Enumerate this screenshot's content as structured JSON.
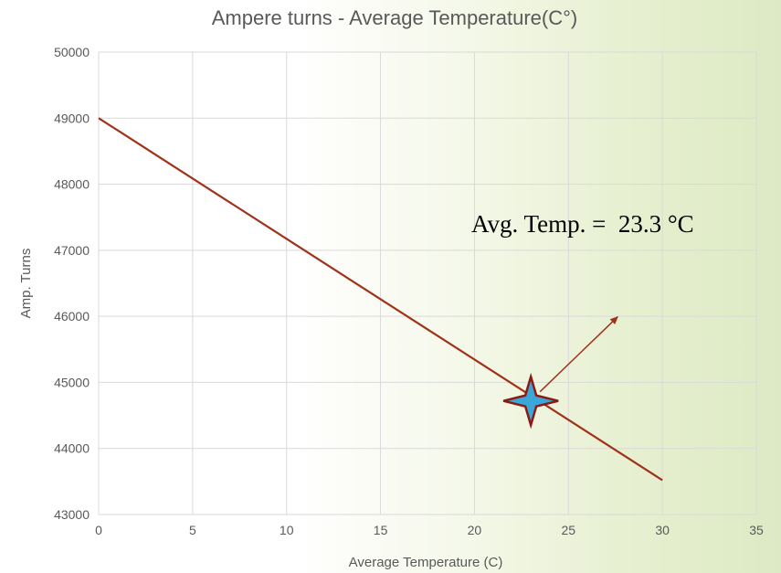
{
  "chart_data": {
    "type": "line",
    "title": "Ampere turns - Average Temperature(C°)",
    "xlabel": "Average Temperature (C)",
    "ylabel": "Amp. Turns",
    "xlim": [
      0,
      35
    ],
    "ylim": [
      43000,
      50000
    ],
    "x_ticks": [
      "0",
      "5",
      "10",
      "15",
      "20",
      "25",
      "30",
      "35"
    ],
    "y_ticks": [
      "43000",
      "44000",
      "45000",
      "46000",
      "47000",
      "48000",
      "49000",
      "50000"
    ],
    "grid": true,
    "series": [
      {
        "x": [
          0,
          30
        ],
        "y": [
          49000,
          43520
        ]
      }
    ],
    "annotation": {
      "text": "Avg. Temp. =  23.3 °C",
      "point": {
        "x": 23.0,
        "y": 44720
      }
    },
    "colors": {
      "line": "#a0311a",
      "marker_fill": "#3aa7d8",
      "marker_edge": "#8b1a12",
      "arrow": "#a0311a"
    }
  }
}
